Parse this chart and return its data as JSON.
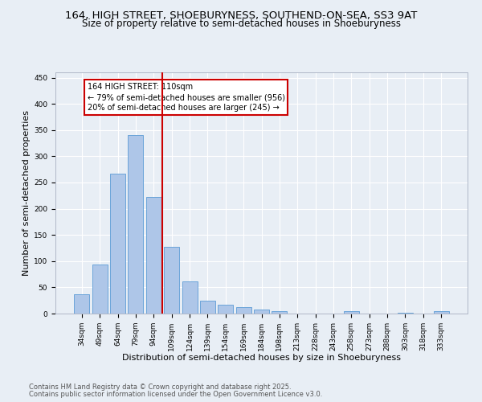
{
  "title1": "164, HIGH STREET, SHOEBURYNESS, SOUTHEND-ON-SEA, SS3 9AT",
  "title2": "Size of property relative to semi-detached houses in Shoeburyness",
  "xlabel": "Distribution of semi-detached houses by size in Shoeburyness",
  "ylabel": "Number of semi-detached properties",
  "categories": [
    "34sqm",
    "49sqm",
    "64sqm",
    "79sqm",
    "94sqm",
    "109sqm",
    "124sqm",
    "139sqm",
    "154sqm",
    "169sqm",
    "184sqm",
    "198sqm",
    "213sqm",
    "228sqm",
    "243sqm",
    "258sqm",
    "273sqm",
    "288sqm",
    "303sqm",
    "318sqm",
    "333sqm"
  ],
  "values": [
    37,
    93,
    267,
    340,
    223,
    128,
    62,
    25,
    17,
    13,
    7,
    4,
    0,
    0,
    0,
    5,
    0,
    0,
    2,
    0,
    5
  ],
  "bar_color": "#aec6e8",
  "bar_edge_color": "#5b9bd5",
  "annotation_text1": "164 HIGH STREET: 110sqm",
  "annotation_text2": "← 79% of semi-detached houses are smaller (956)",
  "annotation_text3": "20% of semi-detached houses are larger (245) →",
  "annotation_box_color": "#ffffff",
  "annotation_box_edge_color": "#cc0000",
  "vline_color": "#cc0000",
  "ylim": [
    0,
    460
  ],
  "yticks": [
    0,
    50,
    100,
    150,
    200,
    250,
    300,
    350,
    400,
    450
  ],
  "footer1": "Contains HM Land Registry data © Crown copyright and database right 2025.",
  "footer2": "Contains public sector information licensed under the Open Government Licence v3.0.",
  "bg_color": "#e8eef5",
  "plot_bg_color": "#e8eef5",
  "title1_fontsize": 9.5,
  "title2_fontsize": 8.5,
  "axis_fontsize": 8,
  "tick_fontsize": 6.5,
  "footer_fontsize": 6,
  "ann_fontsize": 7
}
